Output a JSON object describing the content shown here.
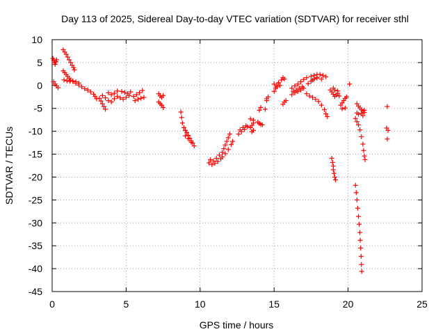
{
  "chart_data": {
    "type": "scatter",
    "title": "Day 113 of 2025, Sidereal Day-to-day VTEC variation (SDTVAR) for receiver sthl",
    "xlabel": "GPS time / hours",
    "ylabel": "SDTVAR / TECUs",
    "xlim": [
      0,
      25
    ],
    "ylim": [
      -45,
      10
    ],
    "xticks": [
      0,
      5,
      10,
      15,
      20,
      25
    ],
    "yticks": [
      10,
      5,
      0,
      -5,
      -10,
      -15,
      -20,
      -25,
      -30,
      -35,
      -40,
      -45
    ],
    "grid": true,
    "marker": "+",
    "marker_color": "#ff0000",
    "series": [
      {
        "name": "SDTVAR",
        "points": [
          [
            0.05,
            5.9
          ],
          [
            0.1,
            5.5
          ],
          [
            0.15,
            5.0
          ],
          [
            0.2,
            4.6
          ],
          [
            0.25,
            5.2
          ],
          [
            0.3,
            5.6
          ],
          [
            0.1,
            0.8
          ],
          [
            0.2,
            0.3
          ],
          [
            0.3,
            -0.1
          ],
          [
            0.4,
            -0.5
          ],
          [
            0.75,
            7.8
          ],
          [
            0.85,
            7.3
          ],
          [
            0.95,
            6.8
          ],
          [
            1.05,
            6.2
          ],
          [
            1.15,
            5.6
          ],
          [
            1.25,
            5.0
          ],
          [
            1.35,
            4.4
          ],
          [
            1.45,
            3.9
          ],
          [
            1.5,
            3.4
          ],
          [
            0.75,
            3.2
          ],
          [
            0.85,
            2.8
          ],
          [
            0.95,
            2.4
          ],
          [
            1.05,
            2.0
          ],
          [
            1.15,
            1.6
          ],
          [
            1.25,
            1.2
          ],
          [
            1.4,
            0.9
          ],
          [
            1.6,
            0.5
          ],
          [
            1.8,
            0.1
          ],
          [
            2.0,
            -0.3
          ],
          [
            2.2,
            -0.7
          ],
          [
            2.4,
            -1.0
          ],
          [
            0.8,
            1.2
          ],
          [
            1.0,
            1.0
          ],
          [
            1.2,
            0.9
          ],
          [
            1.4,
            1.0
          ],
          [
            1.6,
            0.8
          ],
          [
            1.8,
            0.5
          ],
          [
            2.6,
            -1.4
          ],
          [
            2.8,
            -1.9
          ],
          [
            2.9,
            -2.4
          ],
          [
            3.0,
            -2.9
          ],
          [
            3.2,
            -2.8
          ],
          [
            3.3,
            -3.4
          ],
          [
            3.4,
            -4.0
          ],
          [
            3.5,
            -4.6
          ],
          [
            3.6,
            -5.2
          ],
          [
            3.4,
            -2.2
          ],
          [
            3.6,
            -2.7
          ],
          [
            3.8,
            -3.3
          ],
          [
            4.0,
            -3.6
          ],
          [
            4.2,
            -2.9
          ],
          [
            4.4,
            -2.4
          ],
          [
            3.8,
            -1.6
          ],
          [
            4.0,
            -2.0
          ],
          [
            4.2,
            -1.7
          ],
          [
            4.4,
            -1.2
          ],
          [
            4.6,
            -2.7
          ],
          [
            4.8,
            -3.0
          ],
          [
            5.0,
            -2.6
          ],
          [
            5.2,
            -2.2
          ],
          [
            4.7,
            -1.3
          ],
          [
            4.9,
            -1.5
          ],
          [
            5.1,
            -1.8
          ],
          [
            5.3,
            -1.4
          ],
          [
            5.5,
            -2.4
          ],
          [
            5.7,
            -2.0
          ],
          [
            5.9,
            -1.6
          ],
          [
            6.1,
            -1.1
          ],
          [
            5.6,
            -3.3
          ],
          [
            5.8,
            -3.0
          ],
          [
            6.0,
            -2.8
          ],
          [
            6.2,
            -2.6
          ],
          [
            7.2,
            -1.8
          ],
          [
            7.3,
            -2.3
          ],
          [
            7.4,
            -2.6
          ],
          [
            7.5,
            -2.2
          ],
          [
            7.2,
            -3.6
          ],
          [
            7.3,
            -4.0
          ],
          [
            7.4,
            -4.3
          ],
          [
            7.5,
            -4.8
          ],
          [
            8.7,
            -5.8
          ],
          [
            8.75,
            -7.0
          ],
          [
            8.8,
            -8.2
          ],
          [
            8.9,
            -9.2
          ],
          [
            9.0,
            -9.8
          ],
          [
            9.1,
            -10.3
          ],
          [
            9.2,
            -10.9
          ],
          [
            9.3,
            -11.5
          ],
          [
            9.4,
            -12.1
          ],
          [
            9.5,
            -12.6
          ],
          [
            9.6,
            -13.2
          ],
          [
            9.0,
            -11.0
          ],
          [
            9.2,
            -11.6
          ],
          [
            9.4,
            -12.4
          ],
          [
            10.6,
            -16.9
          ],
          [
            10.8,
            -17.3
          ],
          [
            11.0,
            -17.0
          ],
          [
            11.2,
            -16.6
          ],
          [
            11.4,
            -16.0
          ],
          [
            10.7,
            -16.2
          ],
          [
            10.9,
            -16.5
          ],
          [
            11.1,
            -15.9
          ],
          [
            11.3,
            -15.2
          ],
          [
            11.5,
            -14.6
          ],
          [
            11.6,
            -13.8
          ],
          [
            11.7,
            -13.0
          ],
          [
            11.8,
            -12.2
          ],
          [
            11.9,
            -11.4
          ],
          [
            12.0,
            -10.6
          ],
          [
            11.5,
            -15.6
          ],
          [
            11.7,
            -14.9
          ],
          [
            11.9,
            -14.0
          ],
          [
            12.1,
            -12.9
          ],
          [
            12.2,
            -12.2
          ],
          [
            12.6,
            -10.6
          ],
          [
            12.8,
            -10.1
          ],
          [
            13.0,
            -9.6
          ],
          [
            13.2,
            -9.0
          ],
          [
            12.7,
            -9.7
          ],
          [
            12.9,
            -9.2
          ],
          [
            13.1,
            -8.8
          ],
          [
            13.4,
            -9.2
          ],
          [
            13.5,
            -8.7
          ],
          [
            13.6,
            -8.2
          ],
          [
            13.4,
            -7.3
          ],
          [
            13.6,
            -7.6
          ],
          [
            13.5,
            -10.1
          ],
          [
            13.6,
            -9.8
          ],
          [
            13.9,
            -8.0
          ],
          [
            14.1,
            -8.5
          ],
          [
            14.2,
            -8.6
          ],
          [
            14.0,
            -8.3
          ],
          [
            14.0,
            -5.4
          ],
          [
            14.1,
            -4.8
          ],
          [
            14.4,
            -5.2
          ],
          [
            14.5,
            -2.9
          ],
          [
            14.6,
            -2.5
          ],
          [
            14.5,
            -3.3
          ],
          [
            15.0,
            -1.3
          ],
          [
            15.1,
            -0.6
          ],
          [
            15.2,
            0.0
          ],
          [
            15.3,
            0.6
          ],
          [
            15.0,
            0.3
          ],
          [
            15.2,
            -0.3
          ],
          [
            15.4,
            0.0
          ],
          [
            15.5,
            1.2
          ],
          [
            15.6,
            1.7
          ],
          [
            15.7,
            1.4
          ],
          [
            15.6,
            -4.1
          ],
          [
            15.7,
            -3.6
          ],
          [
            15.8,
            -3.3
          ],
          [
            16.2,
            -2.0
          ],
          [
            16.4,
            -1.6
          ],
          [
            16.6,
            -1.3
          ],
          [
            16.8,
            -1.0
          ],
          [
            17.0,
            -0.6
          ],
          [
            16.2,
            -0.6
          ],
          [
            16.4,
            -0.1
          ],
          [
            16.6,
            0.3
          ],
          [
            16.8,
            0.8
          ],
          [
            17.0,
            1.3
          ],
          [
            17.2,
            1.7
          ],
          [
            16.3,
            -1.3
          ],
          [
            16.5,
            -1.0
          ],
          [
            16.7,
            -0.6
          ],
          [
            16.9,
            -0.3
          ],
          [
            17.3,
            0.4
          ],
          [
            17.5,
            0.9
          ],
          [
            17.7,
            1.4
          ],
          [
            17.9,
            1.8
          ],
          [
            17.5,
            2.0
          ],
          [
            17.7,
            2.2
          ],
          [
            17.9,
            2.4
          ],
          [
            18.1,
            2.4
          ],
          [
            18.3,
            2.2
          ],
          [
            18.5,
            1.9
          ],
          [
            17.6,
            1.2
          ],
          [
            17.9,
            1.6
          ],
          [
            18.2,
            1.4
          ],
          [
            17.2,
            -1.8
          ],
          [
            17.4,
            -2.3
          ],
          [
            17.6,
            -2.6
          ],
          [
            17.8,
            -3.0
          ],
          [
            18.0,
            -3.5
          ],
          [
            18.2,
            -4.3
          ],
          [
            18.4,
            -5.3
          ],
          [
            18.5,
            -6.2
          ],
          [
            18.6,
            -6.8
          ],
          [
            18.8,
            -1.0
          ],
          [
            18.9,
            -1.4
          ],
          [
            19.0,
            -1.9
          ],
          [
            19.1,
            -2.4
          ],
          [
            19.2,
            -2.1
          ],
          [
            19.3,
            -1.7
          ],
          [
            19.4,
            -2.3
          ],
          [
            19.0,
            -0.6
          ],
          [
            19.1,
            -1.0
          ],
          [
            19.3,
            -1.2
          ],
          [
            19.5,
            -4.3
          ],
          [
            19.6,
            -3.8
          ],
          [
            19.7,
            -3.3
          ],
          [
            19.8,
            -2.8
          ],
          [
            19.6,
            -5.1
          ],
          [
            19.8,
            -4.9
          ],
          [
            19.9,
            -2.5
          ],
          [
            20.1,
            0.3
          ],
          [
            18.9,
            -15.9
          ],
          [
            18.95,
            -16.8
          ],
          [
            19.0,
            -17.6
          ],
          [
            19.0,
            -18.4
          ],
          [
            19.05,
            -19.2
          ],
          [
            19.1,
            -20.0
          ],
          [
            19.15,
            -20.6
          ],
          [
            20.6,
            -4.0
          ],
          [
            20.7,
            -4.5
          ],
          [
            20.8,
            -4.9
          ],
          [
            20.9,
            -5.3
          ],
          [
            21.0,
            -5.6
          ],
          [
            21.1,
            -5.4
          ],
          [
            20.6,
            -6.0
          ],
          [
            20.7,
            -6.3
          ],
          [
            20.9,
            -6.1
          ],
          [
            21.0,
            -6.6
          ],
          [
            21.1,
            -5.9
          ],
          [
            20.5,
            -7.2
          ],
          [
            20.6,
            -7.9
          ],
          [
            20.7,
            -8.6
          ],
          [
            20.8,
            -9.7
          ],
          [
            20.9,
            -11.2
          ],
          [
            21.0,
            -12.8
          ],
          [
            21.05,
            -14.2
          ],
          [
            21.1,
            -15.4
          ],
          [
            21.15,
            -16.2
          ],
          [
            20.5,
            -21.8
          ],
          [
            20.55,
            -23.4
          ],
          [
            20.6,
            -25.0
          ],
          [
            20.65,
            -26.8
          ],
          [
            20.7,
            -28.6
          ],
          [
            20.75,
            -30.3
          ],
          [
            20.8,
            -32.1
          ],
          [
            20.82,
            -33.8
          ],
          [
            20.85,
            -35.5
          ],
          [
            20.88,
            -37.3
          ],
          [
            20.9,
            -39.1
          ],
          [
            20.92,
            -40.6
          ],
          [
            22.65,
            -4.6
          ],
          [
            22.6,
            -9.3
          ],
          [
            22.7,
            -9.8
          ],
          [
            22.65,
            -11.7
          ]
        ]
      }
    ]
  }
}
